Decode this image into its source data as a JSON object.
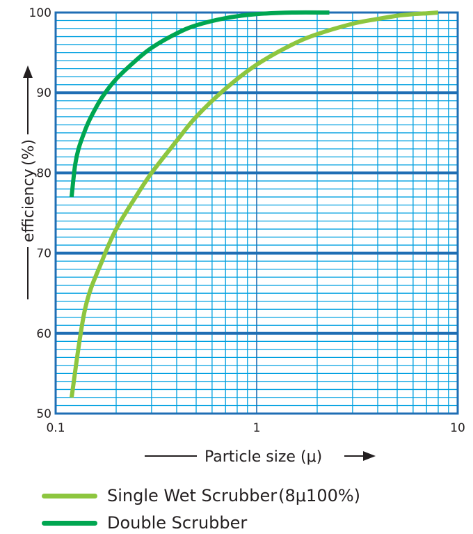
{
  "chart_data": {
    "type": "line",
    "x_scale": "log",
    "xlim": [
      0.1,
      10
    ],
    "ylim": [
      50,
      100
    ],
    "x_ticks": [
      "0.1",
      "1",
      "10"
    ],
    "y_ticks": [
      "50",
      "60",
      "70",
      "80",
      "90",
      "100"
    ],
    "xlabel": "Particle size",
    "xunit": "(μ)",
    "ylabel": "efficiency",
    "yunit": "(%)",
    "grid": true,
    "legend_position": "bottom",
    "series": [
      {
        "name": "Single Wet Scrubber",
        "name_note": "(8μ100%)",
        "color": "#8dc63f",
        "x": [
          0.12,
          0.14,
          0.17,
          0.2,
          0.25,
          0.3,
          0.4,
          0.5,
          0.7,
          1.0,
          1.5,
          2.0,
          3.0,
          4.0,
          5.0,
          6.0,
          7.0,
          8.0
        ],
        "y": [
          52,
          63,
          69,
          73,
          77,
          80,
          84,
          87,
          90.5,
          93.5,
          96,
          97.3,
          98.6,
          99.2,
          99.6,
          99.8,
          99.9,
          100
        ]
      },
      {
        "name": "Double Scrubber",
        "color": "#00a651",
        "x": [
          0.12,
          0.125,
          0.13,
          0.14,
          0.15,
          0.17,
          0.2,
          0.25,
          0.3,
          0.4,
          0.5,
          0.7,
          1.0,
          1.5,
          2.3
        ],
        "y": [
          77,
          81,
          83,
          85.3,
          87,
          89.4,
          91.7,
          94,
          95.6,
          97.4,
          98.4,
          99.3,
          99.8,
          100,
          100
        ]
      }
    ]
  },
  "colors": {
    "grid_minor": "#00a0e0",
    "grid_major": "#1f6eb4",
    "frame": "#1f6eb4",
    "arrow": "#231f20"
  }
}
